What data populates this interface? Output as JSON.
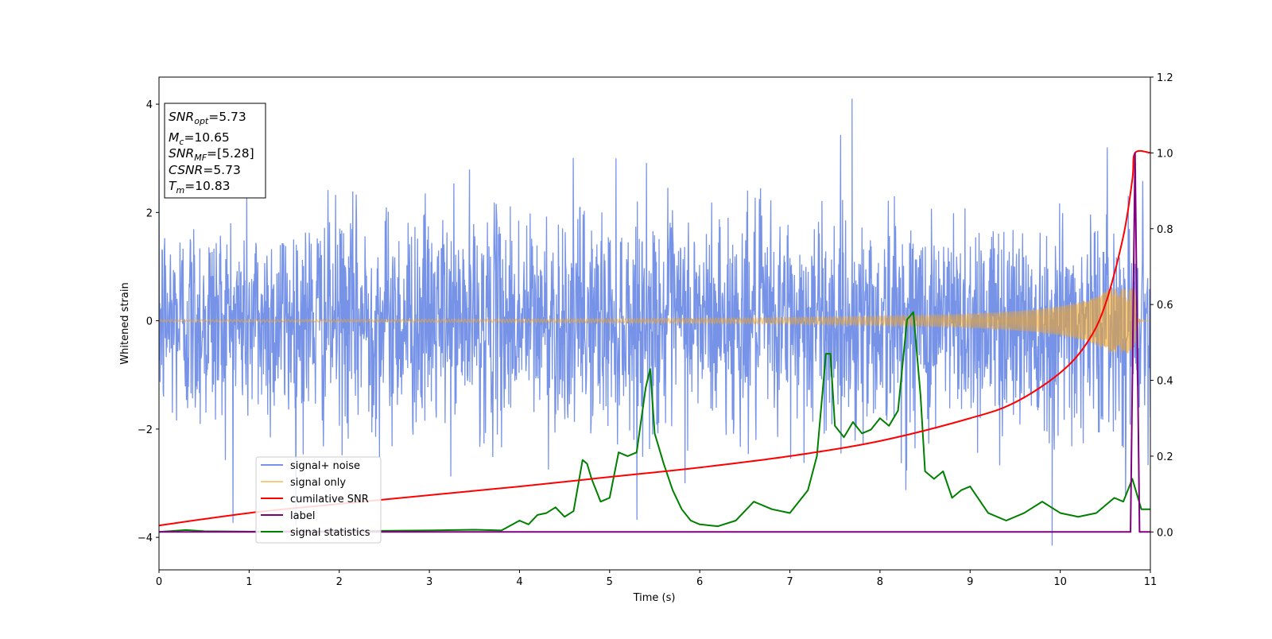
{
  "chart_data": {
    "type": "line",
    "xlabel": "Time (s)",
    "ylabel": "Whitened strain",
    "xlim": [
      0,
      11
    ],
    "ylim": [
      -4.6,
      4.5
    ],
    "y2lim": [
      -0.1,
      1.2
    ],
    "grid": false,
    "legend_placement": "lower-left",
    "x_ticks": [
      0,
      1,
      2,
      3,
      4,
      5,
      6,
      7,
      8,
      9,
      10,
      11
    ],
    "y_ticks": [
      -4,
      -2,
      0,
      2,
      4
    ],
    "y2_ticks": [
      "0.0",
      "0.2",
      "0.4",
      "0.6",
      "0.8",
      "1.0",
      "1.2"
    ],
    "annotation": {
      "lines": [
        {
          "sym": "SNR",
          "sub": "opt",
          "value": "=5.73"
        },
        {
          "sym": "M",
          "sub": "c",
          "value": "=10.65"
        },
        {
          "sym": "SNR",
          "sub": "MF",
          "value": "=[5.28]"
        },
        {
          "sym": "CSNR",
          "sub": "",
          "value": "=5.73"
        },
        {
          "sym": "T",
          "sub": "m",
          "value": "=10.83"
        }
      ]
    },
    "series": [
      {
        "name": "signal+ noise",
        "color": "#4a6fe0",
        "axis": "left",
        "kind": "noise",
        "noise_std": 1.0,
        "peak_max": 4.1,
        "peak_min": -4.15
      },
      {
        "name": "signal only",
        "color": "#f5a623",
        "axis": "left",
        "kind": "chirp",
        "amplitude_start": 0.02,
        "amplitude_end": 0.6,
        "merger_time": 10.83
      },
      {
        "name": "cumilative SNR",
        "color": "#ff0000",
        "axis": "right",
        "x": [
          0,
          1,
          2,
          3,
          4,
          5,
          6,
          7,
          8,
          9,
          9.5,
          10,
          10.3,
          10.5,
          10.7,
          10.8,
          10.83,
          11
        ],
        "y": [
          0.017,
          0.05,
          0.074,
          0.097,
          0.12,
          0.145,
          0.17,
          0.2,
          0.24,
          0.3,
          0.342,
          0.42,
          0.5,
          0.6,
          0.78,
          0.93,
          1.0,
          1.0
        ]
      },
      {
        "name": "label",
        "color": "#800080",
        "axis": "right",
        "x": [
          0,
          10.78,
          10.83,
          10.88,
          11
        ],
        "y": [
          0.0,
          0.0,
          1.0,
          0.0,
          0.0
        ]
      },
      {
        "name": "signal statistics",
        "color": "#008000",
        "axis": "right",
        "x": [
          0,
          0.3,
          0.5,
          1,
          2,
          3,
          3.5,
          3.8,
          4,
          4.1,
          4.2,
          4.3,
          4.4,
          4.5,
          4.6,
          4.7,
          4.75,
          4.8,
          4.9,
          5.0,
          5.1,
          5.2,
          5.3,
          5.4,
          5.45,
          5.5,
          5.6,
          5.7,
          5.8,
          5.9,
          6.0,
          6.2,
          6.4,
          6.6,
          6.8,
          7.0,
          7.2,
          7.3,
          7.4,
          7.45,
          7.5,
          7.6,
          7.7,
          7.8,
          7.9,
          8.0,
          8.1,
          8.2,
          8.3,
          8.37,
          8.45,
          8.5,
          8.6,
          8.7,
          8.8,
          8.9,
          9.0,
          9.2,
          9.4,
          9.6,
          9.8,
          10.0,
          10.2,
          10.4,
          10.6,
          10.7,
          10.8,
          10.9,
          11
        ],
        "y": [
          0.0,
          0.005,
          0.002,
          0.001,
          0.002,
          0.004,
          0.006,
          0.004,
          0.03,
          0.02,
          0.045,
          0.05,
          0.065,
          0.04,
          0.055,
          0.19,
          0.18,
          0.14,
          0.08,
          0.09,
          0.21,
          0.2,
          0.21,
          0.38,
          0.43,
          0.26,
          0.18,
          0.11,
          0.06,
          0.03,
          0.02,
          0.015,
          0.03,
          0.08,
          0.06,
          0.05,
          0.11,
          0.2,
          0.47,
          0.47,
          0.28,
          0.25,
          0.29,
          0.26,
          0.27,
          0.3,
          0.28,
          0.32,
          0.56,
          0.58,
          0.36,
          0.16,
          0.14,
          0.16,
          0.09,
          0.11,
          0.12,
          0.05,
          0.03,
          0.05,
          0.08,
          0.05,
          0.04,
          0.05,
          0.09,
          0.08,
          0.14,
          0.06,
          0.06
        ]
      }
    ]
  }
}
